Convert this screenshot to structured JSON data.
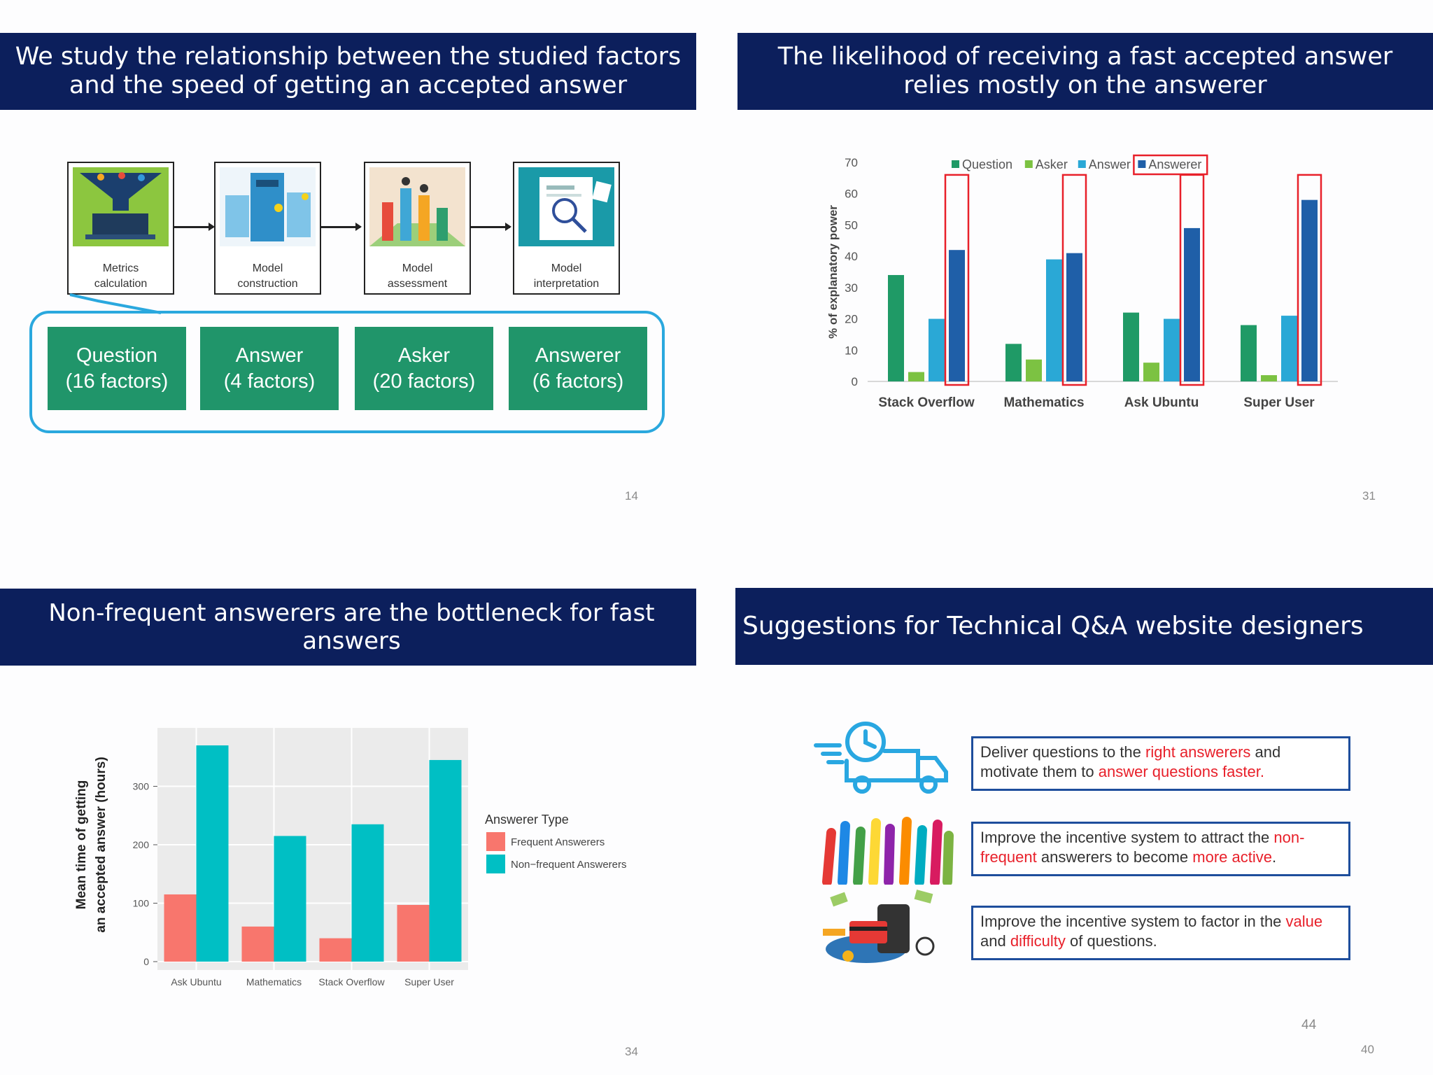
{
  "slide1": {
    "title": "We study the relationship between the studied factors and the speed of getting an accepted answer",
    "steps": [
      {
        "line1": "Metrics",
        "line2": "calculation",
        "icon": "funnel-laptop-icon"
      },
      {
        "line1": "Model",
        "line2": "construction",
        "icon": "building-blocks-icon"
      },
      {
        "line1": "Model",
        "line2": "assessment",
        "icon": "bar-podium-icon"
      },
      {
        "line1": "Model",
        "line2": "interpretation",
        "icon": "magnifier-report-icon"
      }
    ],
    "categories": [
      {
        "name": "Question",
        "count": "(16 factors)"
      },
      {
        "name": "Answer",
        "count": "(4 factors)"
      },
      {
        "name": "Asker",
        "count": "(20 factors)"
      },
      {
        "name": "Answerer",
        "count": "(6 factors)"
      }
    ],
    "page": "14"
  },
  "slide2": {
    "title": "The likelihood of receiving a fast accepted answer relies mostly on the answerer",
    "page": "31",
    "highlight_color": "#e8202a"
  },
  "slide3": {
    "title": "Non-frequent answerers are the bottleneck for fast answers",
    "page": "34"
  },
  "slide4": {
    "title": "Suggestions for Technical Q&A website designers",
    "suggestions": [
      {
        "icon": "delivery-truck-clock-icon",
        "p1": "Deliver questions to the ",
        "h1": "right answerers",
        "p2": " and motivate them to ",
        "h2": "answer questions faster.",
        "p3": ""
      },
      {
        "icon": "raised-hands-icon",
        "p1": "Improve the incentive system to attract the ",
        "h1": "non-frequent",
        "p2": " answerers to become ",
        "h2": "more active",
        "p3": "."
      },
      {
        "icon": "money-incentive-icon",
        "p1": "Improve the incentive system to factor in the ",
        "h1": "value",
        "p2": " and ",
        "h2": "difficulty",
        "p3": " of questions."
      }
    ],
    "page_inner": "44",
    "page": "40"
  },
  "chart_data": [
    {
      "type": "bar",
      "title": "",
      "xlabel": "",
      "ylabel": "% of explanatory power",
      "ylim": [
        0,
        70
      ],
      "yticks": [
        0,
        10,
        20,
        30,
        40,
        50,
        60,
        70
      ],
      "categories": [
        "Stack Overflow",
        "Mathematics",
        "Ask Ubuntu",
        "Super User"
      ],
      "series": [
        {
          "name": "Question",
          "color": "#1f9a66",
          "values": [
            34,
            12,
            22,
            18
          ]
        },
        {
          "name": "Asker",
          "color": "#7cc242",
          "values": [
            3,
            7,
            6,
            2
          ]
        },
        {
          "name": "Answer",
          "color": "#2aa8d6",
          "values": [
            20,
            39,
            20,
            21
          ]
        },
        {
          "name": "Answerer",
          "color": "#1f5fa8",
          "values": [
            42,
            41,
            49,
            58
          ]
        }
      ],
      "legend_placement": "top",
      "highlighted_series": "Answerer"
    },
    {
      "type": "bar",
      "title": "",
      "xlabel": "",
      "ylabel_lines": [
        "Mean time of getting",
        "an accepted answer (hours)"
      ],
      "ylim": [
        0,
        400
      ],
      "yticks": [
        0,
        100,
        200,
        300
      ],
      "categories": [
        "Ask Ubuntu",
        "Mathematics",
        "Stack Overflow",
        "Super User"
      ],
      "legend_title": "Answerer Type",
      "series": [
        {
          "name": "Frequent Answerers",
          "color": "#f8766d",
          "values": [
            115,
            60,
            40,
            97
          ]
        },
        {
          "name": "Non−frequent Answerers",
          "color": "#00bfc4",
          "values": [
            370,
            215,
            235,
            345
          ]
        }
      ],
      "legend_placement": "right",
      "grid": true
    }
  ]
}
